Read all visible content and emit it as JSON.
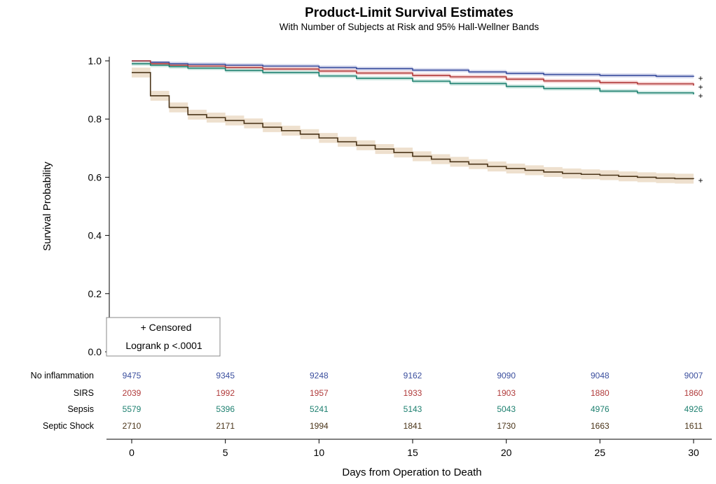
{
  "chart_data": {
    "type": "line",
    "title": "Product-Limit Survival Estimates",
    "subtitle": "With Number of Subjects at Risk and 95% Hall-Wellner Bands",
    "xlabel": "Days from Operation to Death",
    "ylabel": "Survival Probability",
    "xlim": [
      0,
      30
    ],
    "ylim": [
      0,
      1
    ],
    "x_ticks": [
      0,
      5,
      10,
      15,
      20,
      25,
      30
    ],
    "x_tick_labels": [
      "0",
      "5",
      "10",
      "15",
      "20",
      "25",
      "30"
    ],
    "y_ticks": [
      0,
      0.2,
      0.4,
      0.6,
      0.8,
      1.0
    ],
    "y_tick_labels": [
      "0.0",
      "0.2",
      "0.4",
      "0.6",
      "0.8",
      "1.0"
    ],
    "grid": false,
    "legend": {
      "placement": "bottom-left",
      "lines": [
        "+ Censored",
        "Logrank p <.0001"
      ]
    },
    "censor_marker": "+",
    "series": [
      {
        "name": "No inflammation",
        "color": "#3b4f9e",
        "band_color": "#c9cde8",
        "points": [
          [
            0,
            1.0
          ],
          [
            1,
            0.995
          ],
          [
            2,
            0.99
          ],
          [
            3,
            0.988
          ],
          [
            5,
            0.985
          ],
          [
            7,
            0.982
          ],
          [
            10,
            0.977
          ],
          [
            12,
            0.973
          ],
          [
            15,
            0.968
          ],
          [
            18,
            0.962
          ],
          [
            20,
            0.957
          ],
          [
            22,
            0.953
          ],
          [
            25,
            0.95
          ],
          [
            28,
            0.947
          ],
          [
            30,
            0.945
          ]
        ],
        "at_risk": [
          "9475",
          "9345",
          "9248",
          "9162",
          "9090",
          "9048",
          "9007"
        ]
      },
      {
        "name": "SIRS",
        "color": "#b03a3a",
        "band_color": "#f2c6c6",
        "points": [
          [
            0,
            1.0
          ],
          [
            1,
            0.99
          ],
          [
            2,
            0.985
          ],
          [
            3,
            0.982
          ],
          [
            5,
            0.977
          ],
          [
            7,
            0.972
          ],
          [
            10,
            0.965
          ],
          [
            12,
            0.958
          ],
          [
            15,
            0.95
          ],
          [
            17,
            0.945
          ],
          [
            20,
            0.937
          ],
          [
            22,
            0.931
          ],
          [
            25,
            0.925
          ],
          [
            27,
            0.921
          ],
          [
            30,
            0.915
          ]
        ],
        "at_risk": [
          "2039",
          "1992",
          "1957",
          "1933",
          "1903",
          "1880",
          "1860"
        ]
      },
      {
        "name": "Sepsis",
        "color": "#1e8070",
        "band_color": "#bfe0d8",
        "points": [
          [
            0,
            0.99
          ],
          [
            1,
            0.985
          ],
          [
            2,
            0.98
          ],
          [
            3,
            0.975
          ],
          [
            5,
            0.967
          ],
          [
            7,
            0.96
          ],
          [
            10,
            0.948
          ],
          [
            12,
            0.94
          ],
          [
            15,
            0.93
          ],
          [
            17,
            0.922
          ],
          [
            20,
            0.912
          ],
          [
            22,
            0.905
          ],
          [
            25,
            0.896
          ],
          [
            27,
            0.89
          ],
          [
            30,
            0.885
          ]
        ],
        "at_risk": [
          "5579",
          "5396",
          "5241",
          "5143",
          "5043",
          "4976",
          "4926"
        ]
      },
      {
        "name": "Septic Shock",
        "color": "#4a3418",
        "band_color": "#e8d6bd",
        "points": [
          [
            0,
            0.96
          ],
          [
            1,
            0.88
          ],
          [
            2,
            0.84
          ],
          [
            3,
            0.815
          ],
          [
            4,
            0.805
          ],
          [
            5,
            0.795
          ],
          [
            6,
            0.785
          ],
          [
            7,
            0.772
          ],
          [
            8,
            0.76
          ],
          [
            9,
            0.748
          ],
          [
            10,
            0.735
          ],
          [
            11,
            0.722
          ],
          [
            12,
            0.71
          ],
          [
            13,
            0.697
          ],
          [
            14,
            0.685
          ],
          [
            15,
            0.672
          ],
          [
            16,
            0.662
          ],
          [
            17,
            0.653
          ],
          [
            18,
            0.645
          ],
          [
            19,
            0.637
          ],
          [
            20,
            0.63
          ],
          [
            21,
            0.624
          ],
          [
            22,
            0.618
          ],
          [
            23,
            0.613
          ],
          [
            24,
            0.61
          ],
          [
            25,
            0.607
          ],
          [
            26,
            0.603
          ],
          [
            27,
            0.6
          ],
          [
            28,
            0.597
          ],
          [
            29,
            0.595
          ],
          [
            30,
            0.594
          ]
        ],
        "at_risk": [
          "2710",
          "2171",
          "1994",
          "1841",
          "1730",
          "1663",
          "1611"
        ]
      }
    ],
    "at_risk_days": [
      0,
      5,
      10,
      15,
      20,
      25,
      30
    ]
  }
}
